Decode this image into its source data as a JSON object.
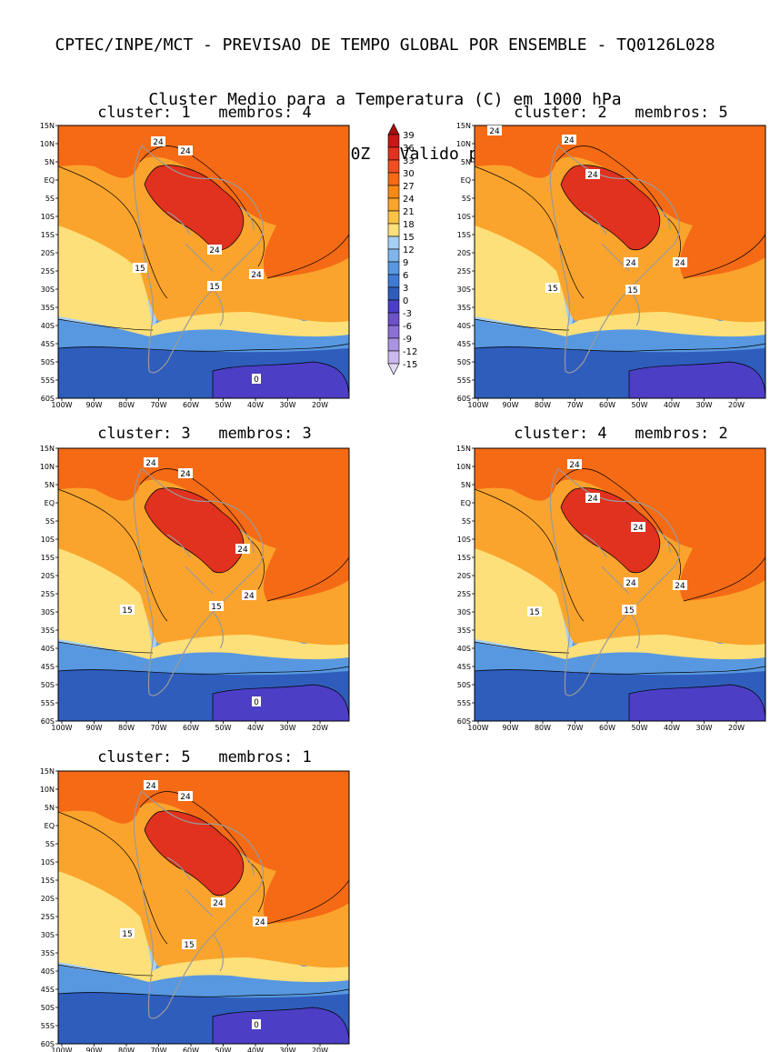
{
  "header": {
    "line1": "CPTEC/INPE/MCT - PREVISAO DE TEMPO GLOBAL POR ENSEMBLE - TQ0126L028",
    "line2": "Cluster Medio para a Temperatura (C) em 1000 hPa",
    "line3": "Previsao de: 2020120100Z   Valido para: 2020120506Z"
  },
  "map_axes": {
    "lat_ticks": [
      "15N",
      "10N",
      "5N",
      "EQ",
      "5S",
      "10S",
      "15S",
      "20S",
      "25S",
      "30S",
      "35S",
      "40S",
      "45S",
      "50S",
      "55S",
      "60S"
    ],
    "lon_ticks": [
      "100W",
      "90W",
      "80W",
      "70W",
      "60W",
      "50W",
      "40W",
      "30W",
      "20W"
    ]
  },
  "panels": [
    {
      "title": "cluster: 1   membros: 4",
      "labels": [
        "24",
        "24",
        "24",
        "24",
        "15",
        "15",
        "0"
      ]
    },
    {
      "title": "cluster: 2   membros: 5",
      "labels": [
        "24",
        "24",
        "24",
        "24",
        "24",
        "15",
        "15"
      ]
    },
    {
      "title": "cluster: 3   membros: 3",
      "labels": [
        "24",
        "24",
        "24",
        "24",
        "15",
        "15",
        "0"
      ]
    },
    {
      "title": "cluster: 4   membros: 2",
      "labels": [
        "24",
        "24",
        "24",
        "24",
        "24",
        "15",
        "15"
      ]
    },
    {
      "title": "cluster: 5   membros: 1",
      "labels": [
        "24",
        "24",
        "24",
        "24",
        "15",
        "15",
        "0"
      ]
    }
  ],
  "legend": {
    "values": [
      "39",
      "36",
      "33",
      "30",
      "27",
      "24",
      "21",
      "18",
      "15",
      "12",
      "9",
      "6",
      "3",
      "0",
      "-3",
      "-6",
      "-9",
      "-12",
      "-15"
    ],
    "colors": [
      "#a50f0f",
      "#c81717",
      "#e0321e",
      "#f04f20",
      "#f56a15",
      "#f88917",
      "#fba42d",
      "#fcc347",
      "#fde07a",
      "#a8d0f5",
      "#7fb5ec",
      "#5898e0",
      "#3f7ad6",
      "#2f5dbc",
      "#4c3ec5",
      "#6d51c9",
      "#8c70d6",
      "#aa93e0",
      "#cbb8ee",
      "#e3daf6"
    ]
  },
  "colors": {
    "ocean_cold": "#2f5dbc",
    "ocean_mid": "#5898e0",
    "ocean_cool": "#a8d0f5",
    "warm1": "#fde07a",
    "warm2": "#fba42d",
    "warm3": "#f56a15",
    "hot": "#e0321e",
    "purple": "#4c3ec5",
    "coast": "#9a9a9a"
  }
}
